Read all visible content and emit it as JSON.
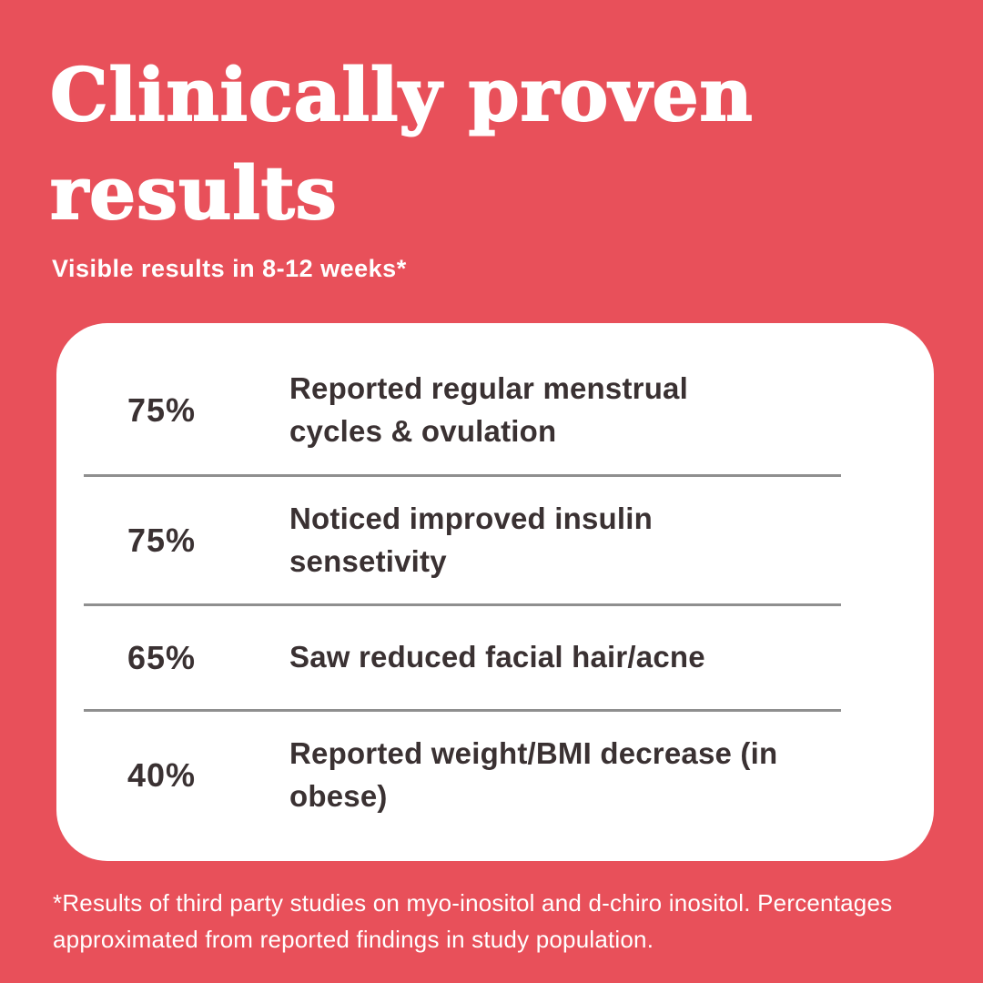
{
  "header": {
    "title": "Clinically proven results",
    "subtitle": "Visible results in 8-12 weeks*"
  },
  "card": {
    "rows": [
      {
        "percent": "75%",
        "description": "Reported regular menstrual cycles & ovulation"
      },
      {
        "percent": "75%",
        "description": "Noticed improved insulin sensetivity"
      },
      {
        "percent": "65%",
        "description": "Saw reduced facial hair/acne"
      },
      {
        "percent": "40%",
        "description": "Reported weight/BMI decrease (in obese)"
      }
    ]
  },
  "footnote": {
    "line1": "*Results of third party studies on myo-inositol and d-chiro inositol. Percentages",
    "line2": "approximated from reported findings in study population."
  },
  "colors": {
    "background": "#E8505A",
    "card": "#FFFFFF",
    "text_dark": "#3A3132",
    "text_light": "#FFFFFF",
    "divider": "#8F8F8F"
  },
  "chart_data": {
    "type": "table",
    "title": "Clinically proven results",
    "subtitle": "Visible results in 8-12 weeks*",
    "categories": [
      "Reported regular menstrual cycles & ovulation",
      "Noticed improved insulin sensetivity",
      "Saw reduced facial hair/acne",
      "Reported weight/BMI decrease (in obese)"
    ],
    "values": [
      75,
      75,
      65,
      40
    ],
    "unit": "%",
    "note": "*Results of third party studies on myo-inositol and d-chiro inositol. Percentages approximated from reported findings in study population."
  }
}
